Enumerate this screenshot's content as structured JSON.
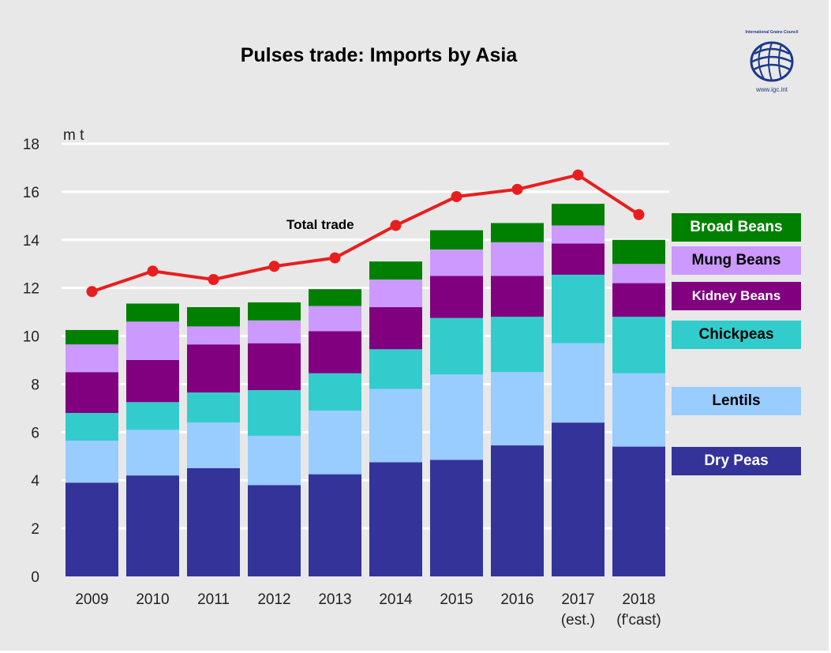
{
  "title": "Pulses trade: Imports by Asia",
  "logo": {
    "org": "International Grains Council",
    "url": "www.igc.int"
  },
  "chart_data": {
    "type": "bar",
    "stacked": true,
    "title": "Pulses trade: Imports by Asia",
    "ylabel": "m t",
    "ylim": [
      0,
      18
    ],
    "yticks": [
      0,
      2,
      4,
      6,
      8,
      10,
      12,
      14,
      16,
      18
    ],
    "grid": true,
    "legend_position": "right",
    "categories": [
      {
        "year": "2009",
        "sub": ""
      },
      {
        "year": "2010",
        "sub": ""
      },
      {
        "year": "2011",
        "sub": ""
      },
      {
        "year": "2012",
        "sub": ""
      },
      {
        "year": "2013",
        "sub": ""
      },
      {
        "year": "2014",
        "sub": ""
      },
      {
        "year": "2015",
        "sub": ""
      },
      {
        "year": "2016",
        "sub": ""
      },
      {
        "year": "2017",
        "sub": "(est.)"
      },
      {
        "year": "2018",
        "sub": "(f'cast)"
      }
    ],
    "series": [
      {
        "name": "Dry Peas",
        "color": "#33339a",
        "text_color": "#ffffff",
        "values": [
          3.9,
          4.2,
          4.5,
          3.8,
          4.25,
          4.75,
          4.85,
          5.45,
          6.4,
          5.4
        ]
      },
      {
        "name": "Lentils",
        "color": "#99ccff",
        "text_color": "#000000",
        "values": [
          1.75,
          1.9,
          1.9,
          2.05,
          2.65,
          3.05,
          3.55,
          3.05,
          3.3,
          3.05
        ]
      },
      {
        "name": "Chickpeas",
        "color": "#33cccc",
        "text_color": "#000000",
        "values": [
          1.15,
          1.15,
          1.25,
          1.9,
          1.55,
          1.65,
          2.35,
          2.3,
          2.85,
          2.35
        ]
      },
      {
        "name": "Kidney Beans",
        "color": "#800080",
        "text_color": "#ffffff",
        "values": [
          1.7,
          1.75,
          2.0,
          1.95,
          1.75,
          1.75,
          1.75,
          1.7,
          1.3,
          1.4
        ]
      },
      {
        "name": "Mung Beans",
        "color": "#cc99ff",
        "text_color": "#000000",
        "values": [
          1.15,
          1.6,
          0.75,
          0.95,
          1.05,
          1.15,
          1.1,
          1.4,
          0.75,
          0.8
        ]
      },
      {
        "name": "Broad Beans",
        "color": "#008000",
        "text_color": "#ffffff",
        "values": [
          0.6,
          0.75,
          0.8,
          0.75,
          0.7,
          0.75,
          0.8,
          0.8,
          0.9,
          1.0
        ]
      }
    ],
    "line": {
      "name": "Total trade",
      "color": "#e81e1e",
      "values": [
        11.85,
        12.7,
        12.35,
        12.9,
        13.25,
        14.6,
        15.8,
        16.1,
        16.7,
        15.05
      ]
    }
  }
}
